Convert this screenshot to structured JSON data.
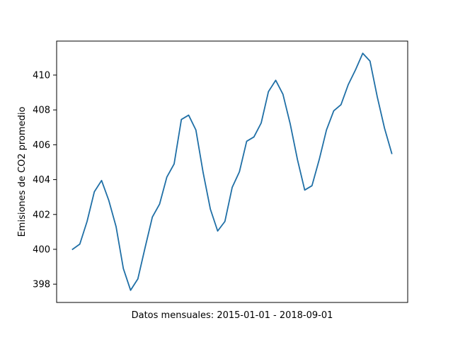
{
  "chart_data": {
    "type": "line",
    "title": "",
    "xlabel": "Datos mensuales: 2015-01-01 - 2018-09-01",
    "ylabel": "Emisiones de CO2 promedio",
    "x": [
      "2015-01-01",
      "2015-02-01",
      "2015-03-01",
      "2015-04-01",
      "2015-05-01",
      "2015-06-01",
      "2015-07-01",
      "2015-08-01",
      "2015-09-01",
      "2015-10-01",
      "2015-11-01",
      "2015-12-01",
      "2016-01-01",
      "2016-02-01",
      "2016-03-01",
      "2016-04-01",
      "2016-05-01",
      "2016-06-01",
      "2016-07-01",
      "2016-08-01",
      "2016-09-01",
      "2016-10-01",
      "2016-11-01",
      "2016-12-01",
      "2017-01-01",
      "2017-02-01",
      "2017-03-01",
      "2017-04-01",
      "2017-05-01",
      "2017-06-01",
      "2017-07-01",
      "2017-08-01",
      "2017-09-01",
      "2017-10-01",
      "2017-11-01",
      "2017-12-01",
      "2018-01-01",
      "2018-02-01",
      "2018-03-01",
      "2018-04-01",
      "2018-05-01",
      "2018-06-01",
      "2018-07-01",
      "2018-08-01",
      "2018-09-01"
    ],
    "series": [
      {
        "color": "#1f6fa6",
        "values": [
          400.0,
          400.3,
          401.6,
          403.3,
          403.95,
          402.8,
          401.3,
          398.9,
          397.65,
          398.3,
          400.1,
          401.85,
          402.6,
          404.15,
          404.9,
          407.45,
          407.7,
          406.85,
          404.4,
          402.3,
          401.05,
          401.6,
          403.55,
          404.45,
          406.2,
          406.45,
          407.25,
          409.05,
          409.7,
          408.9,
          407.2,
          405.15,
          403.4,
          403.65,
          405.15,
          406.85,
          407.95,
          408.3,
          409.45,
          410.3,
          411.25,
          410.8,
          408.75,
          406.95,
          405.5
        ]
      }
    ],
    "yticks": [
      "398",
      "400",
      "402",
      "404",
      "406",
      "408",
      "410"
    ],
    "ylim": [
      396.95,
      411.95
    ],
    "grid": false,
    "legend": "none"
  }
}
